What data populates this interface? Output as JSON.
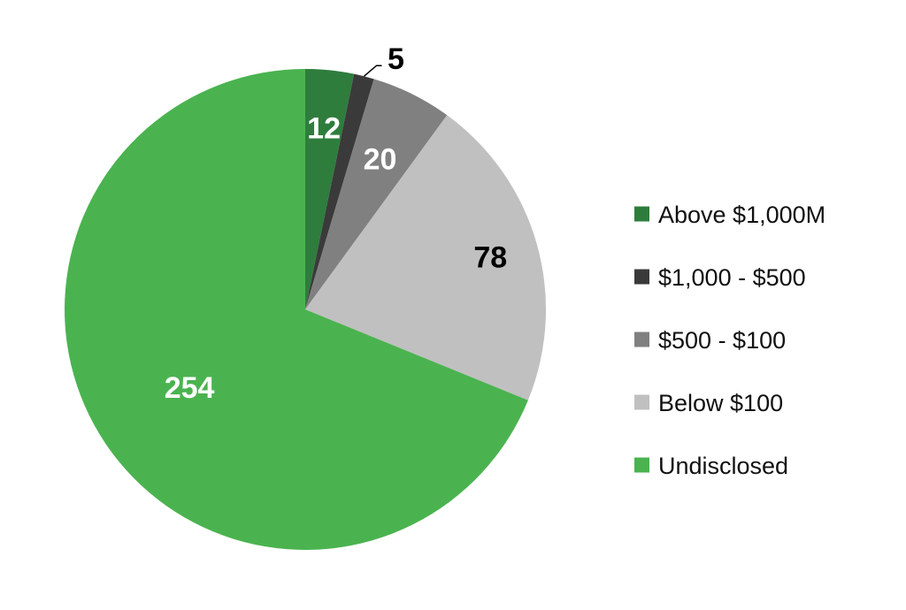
{
  "chart_data": {
    "type": "pie",
    "title": "",
    "legend_placement": "right",
    "slices": [
      {
        "label": "Above $1,000M",
        "value": 12,
        "value_label": "12",
        "color": "#2e7d3c",
        "label_color": "#ffffff"
      },
      {
        "label": "$1,000 - $500",
        "value": 5,
        "value_label": "5",
        "color": "#3a3a3a",
        "label_color": "#000000"
      },
      {
        "label": "$500 - $100",
        "value": 20,
        "value_label": "20",
        "color": "#808080",
        "label_color": "#ffffff"
      },
      {
        "label": "Below $100",
        "value": 78,
        "value_label": "78",
        "color": "#c0c0c0",
        "label_color": "#000000"
      },
      {
        "label": "Undisclosed",
        "value": 254,
        "value_label": "254",
        "color": "#4ab34f",
        "label_color": "#ffffff"
      }
    ]
  }
}
